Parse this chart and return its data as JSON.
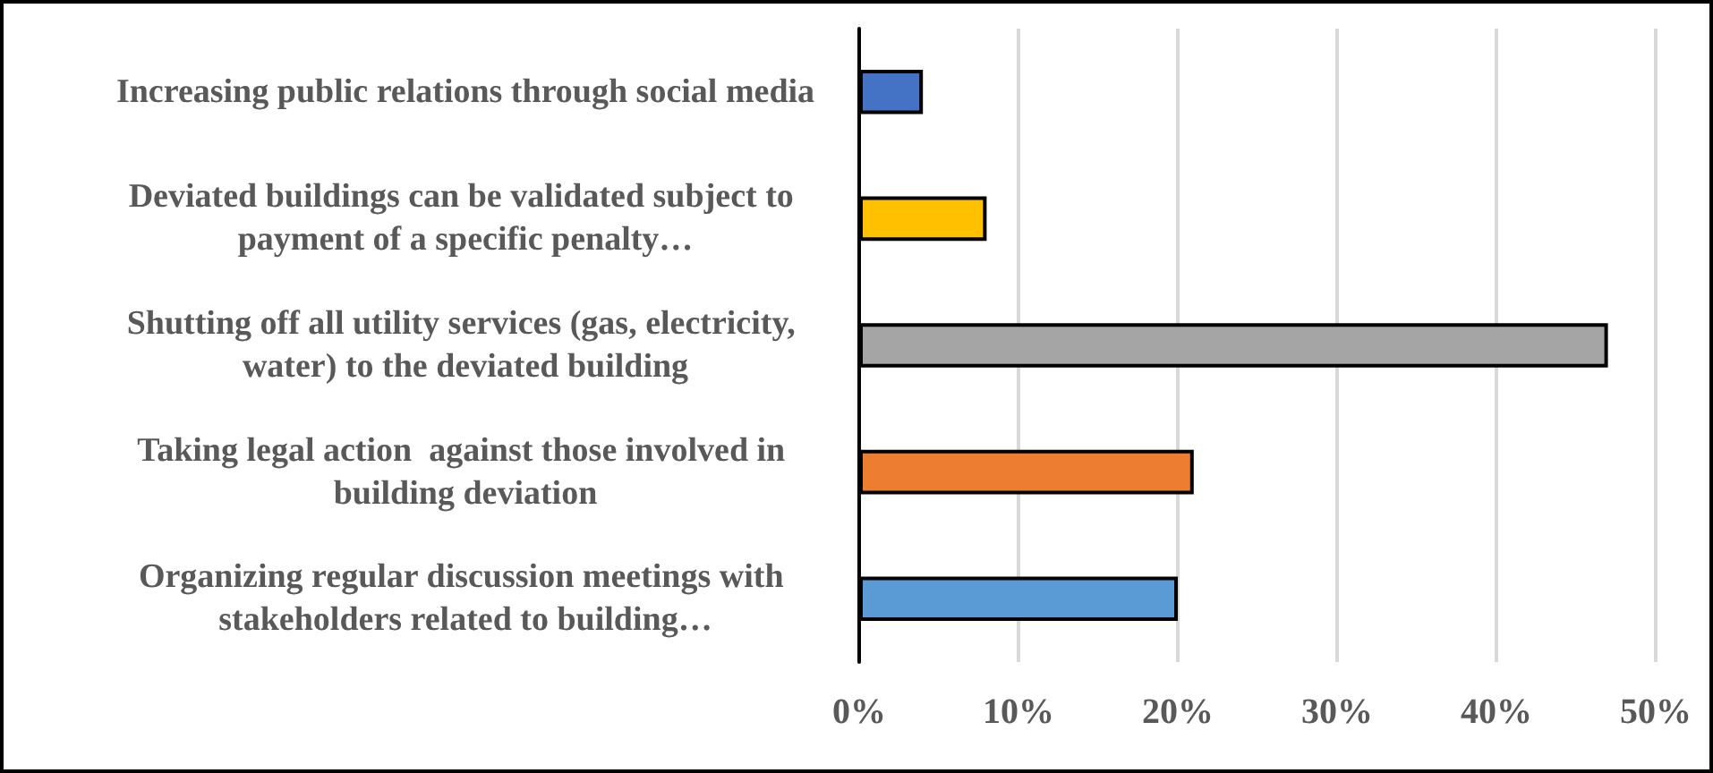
{
  "chart_data": {
    "type": "bar",
    "orientation": "horizontal",
    "categories": [
      "Increasing public relations through social media",
      "Deviated buildings can be validated subject to payment of a specific penalty…",
      "Shutting off all utility services (gas, electricity, water) to the deviated building",
      "Taking legal action  against those involved in building deviation",
      "Organizing regular discussion meetings with stakeholders related to building…"
    ],
    "values": [
      4,
      8,
      47,
      21,
      20
    ],
    "colors": [
      "#4472c4",
      "#ffc000",
      "#a5a5a5",
      "#ed7d31",
      "#5b9bd5"
    ],
    "xlim": [
      0,
      50
    ],
    "xticks": [
      {
        "value": 0,
        "label": "0%"
      },
      {
        "value": 10,
        "label": "10%"
      },
      {
        "value": 20,
        "label": "20%"
      },
      {
        "value": 30,
        "label": "30%"
      },
      {
        "value": 40,
        "label": "40%"
      },
      {
        "value": 50,
        "label": "50%"
      }
    ],
    "grid": "x"
  }
}
